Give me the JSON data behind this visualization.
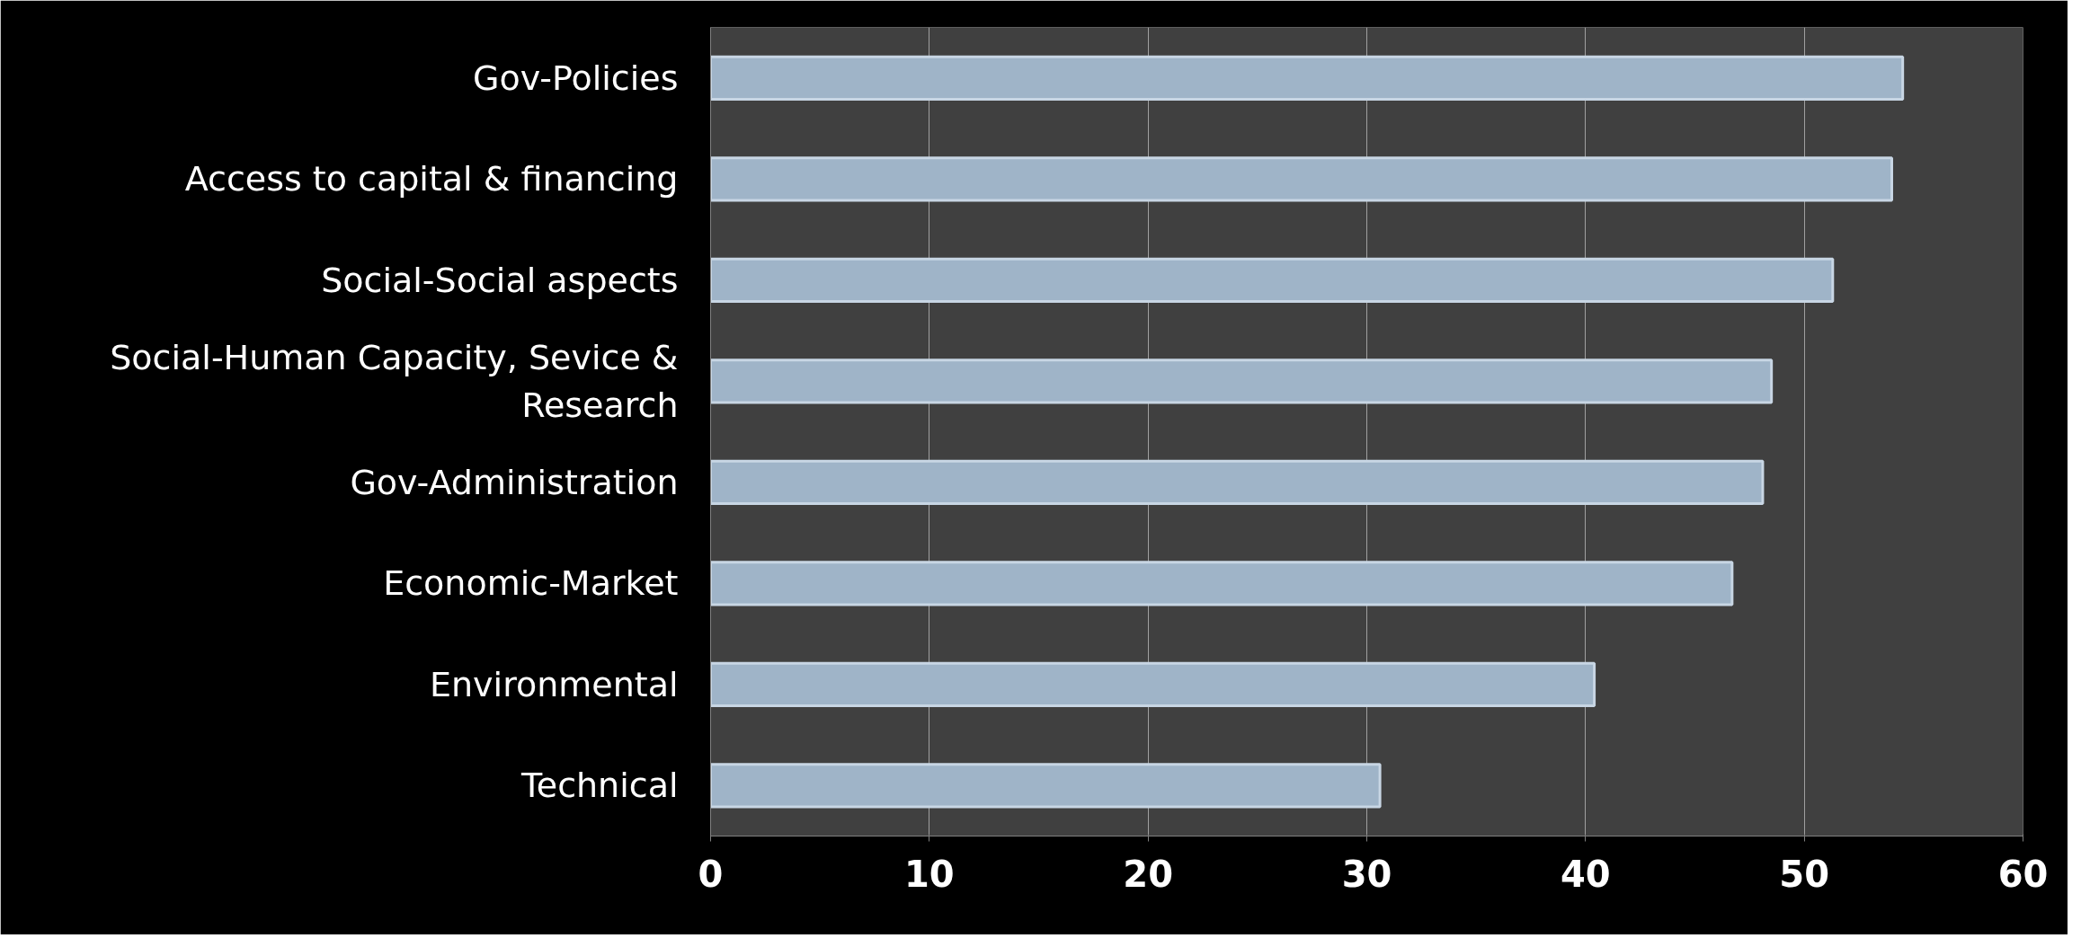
{
  "chart_data": {
    "type": "bar",
    "orientation": "horizontal",
    "categories": [
      "Gov-Policies",
      "Access to capital & financing",
      "Social-Social aspects",
      "Social-Human Capacity, Sevice & Research",
      "Gov-Administration",
      "Economic-Market",
      "Environmental",
      "Technical"
    ],
    "values": [
      54.5,
      54.0,
      51.3,
      48.5,
      48.1,
      46.7,
      40.4,
      30.6
    ],
    "color": "#9fb4c8",
    "xlim": [
      0,
      60
    ],
    "xticks": [
      0,
      10,
      20,
      30,
      40,
      50,
      60
    ],
    "grid": "x"
  }
}
